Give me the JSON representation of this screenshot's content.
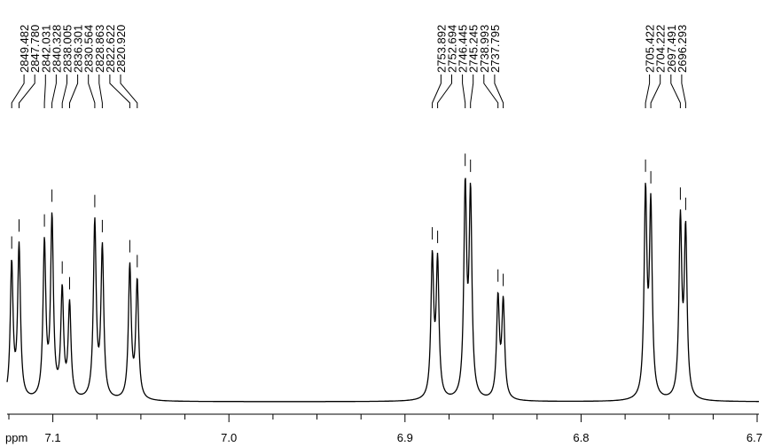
{
  "chart_data": {
    "type": "line",
    "title": "",
    "xlabel": "ppm",
    "ylabel": "",
    "x_reversed": true,
    "xlim": [
      7.126,
      6.699
    ],
    "x_ticks": [
      7.1,
      7.0,
      6.9,
      6.8,
      6.7
    ],
    "x_tick_labels": [
      "7.1",
      "7.0",
      "6.9",
      "6.8",
      "6.7"
    ],
    "peaks": [
      {
        "label": "2849.482",
        "ppm": 7.1234,
        "intensity": 0.62
      },
      {
        "label": "2847.780",
        "ppm": 7.1192,
        "intensity": 0.7
      },
      {
        "label": "2842.031",
        "ppm": 7.1048,
        "intensity": 0.71
      },
      {
        "label": "2840.328",
        "ppm": 7.1005,
        "intensity": 0.82
      },
      {
        "label": "2838.005",
        "ppm": 7.0947,
        "intensity": 0.49
      },
      {
        "label": "2836.301",
        "ppm": 7.0905,
        "intensity": 0.43
      },
      {
        "label": "2830.564",
        "ppm": 7.0762,
        "intensity": 0.81
      },
      {
        "label": "2828.863",
        "ppm": 7.0719,
        "intensity": 0.69
      },
      {
        "label": "2822.622",
        "ppm": 7.0563,
        "intensity": 0.61
      },
      {
        "label": "2820.920",
        "ppm": 7.0521,
        "intensity": 0.54
      },
      {
        "label": "2753.892",
        "ppm": 6.8845,
        "intensity": 0.64
      },
      {
        "label": "2752.694",
        "ppm": 6.8815,
        "intensity": 0.62
      },
      {
        "label": "2746.445",
        "ppm": 6.8658,
        "intensity": 0.95
      },
      {
        "label": "2745.245",
        "ppm": 6.8628,
        "intensity": 0.92
      },
      {
        "label": "2738.993",
        "ppm": 6.8472,
        "intensity": 0.46
      },
      {
        "label": "2737.795",
        "ppm": 6.8442,
        "intensity": 0.44
      },
      {
        "label": "2705.422",
        "ppm": 6.7634,
        "intensity": 0.93
      },
      {
        "label": "2704.222",
        "ppm": 6.7604,
        "intensity": 0.87
      },
      {
        "label": "2697.491",
        "ppm": 6.7436,
        "intensity": 0.81
      },
      {
        "label": "2696.293",
        "ppm": 6.7406,
        "intensity": 0.76
      }
    ]
  }
}
